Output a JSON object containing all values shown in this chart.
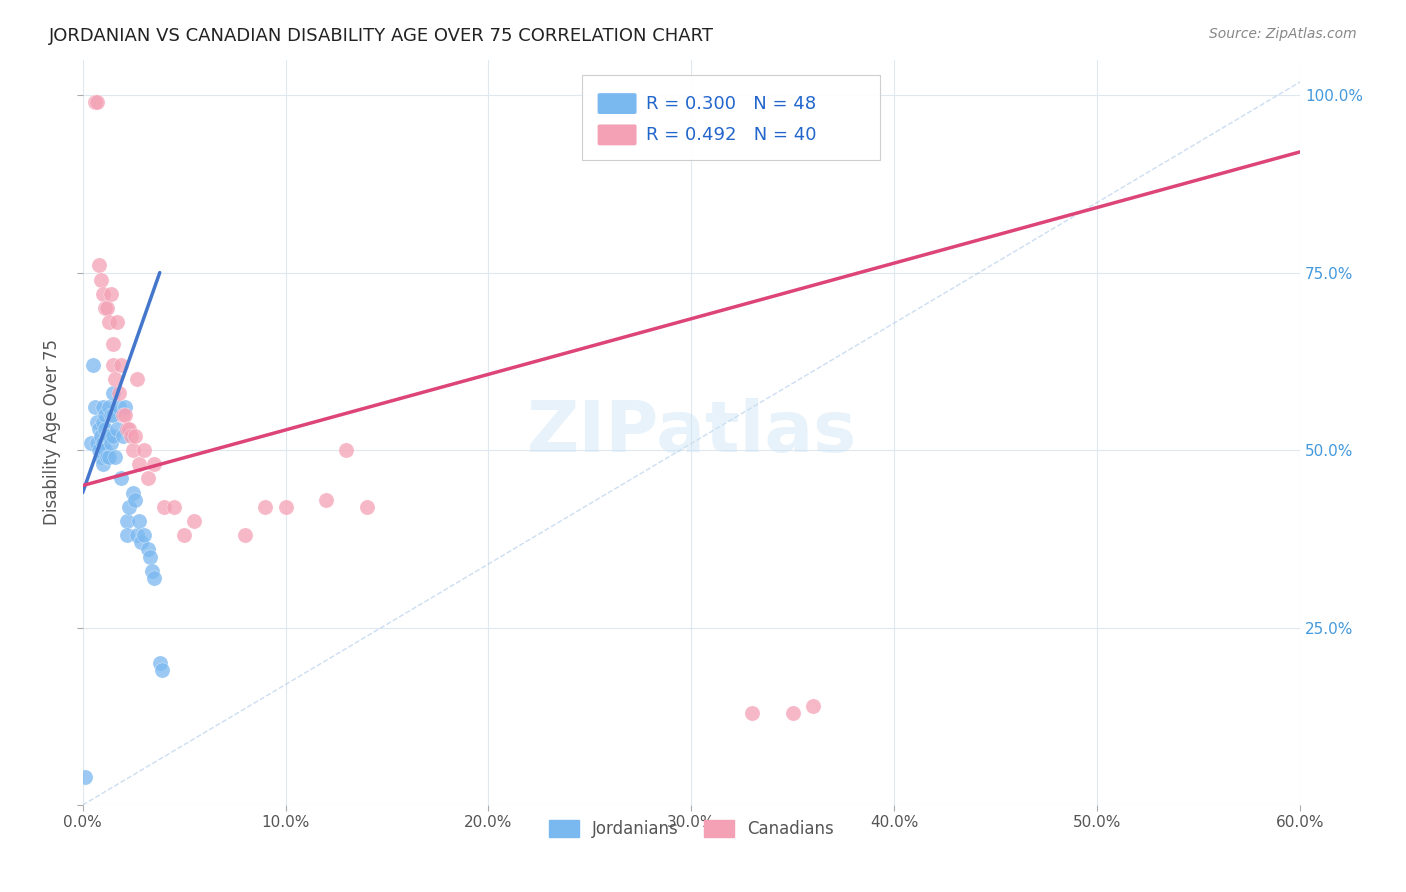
{
  "title": "JORDANIAN VS CANADIAN DISABILITY AGE OVER 75 CORRELATION CHART",
  "source": "Source: ZipAtlas.com",
  "ylabel": "Disability Age Over 75",
  "x_min": 0.0,
  "x_max": 0.6,
  "y_min": 0.0,
  "y_max": 1.05,
  "legend_blue_r": "0.300",
  "legend_blue_n": "48",
  "legend_pink_r": "0.492",
  "legend_pink_n": "40",
  "color_blue": "#7ab8f0",
  "color_pink": "#f4a0b5",
  "color_blue_line": "#4477cc",
  "color_pink_line": "#dd4477",
  "color_diag": "#aac8e8",
  "background_color": "#ffffff",
  "grid_color": "#dde8f0",
  "title_color": "#222222",
  "source_color": "#888888",
  "legend_r_color": "#2266cc",
  "jordanians_x": [
    0.001,
    0.004,
    0.005,
    0.006,
    0.007,
    0.007,
    0.008,
    0.008,
    0.009,
    0.009,
    0.01,
    0.01,
    0.01,
    0.01,
    0.011,
    0.011,
    0.011,
    0.012,
    0.012,
    0.013,
    0.013,
    0.013,
    0.014,
    0.014,
    0.015,
    0.015,
    0.015,
    0.016,
    0.017,
    0.018,
    0.019,
    0.02,
    0.021,
    0.022,
    0.022,
    0.023,
    0.025,
    0.026,
    0.027,
    0.028,
    0.029,
    0.03,
    0.032,
    0.033,
    0.034,
    0.035,
    0.038,
    0.039
  ],
  "jordanians_y": [
    0.04,
    0.51,
    0.62,
    0.56,
    0.54,
    0.51,
    0.53,
    0.5,
    0.52,
    0.49,
    0.56,
    0.54,
    0.51,
    0.48,
    0.55,
    0.53,
    0.5,
    0.52,
    0.49,
    0.56,
    0.52,
    0.49,
    0.55,
    0.51,
    0.58,
    0.55,
    0.52,
    0.49,
    0.53,
    0.56,
    0.46,
    0.52,
    0.56,
    0.4,
    0.38,
    0.42,
    0.44,
    0.43,
    0.38,
    0.4,
    0.37,
    0.38,
    0.36,
    0.35,
    0.33,
    0.32,
    0.2,
    0.19
  ],
  "canadians_x": [
    0.006,
    0.007,
    0.008,
    0.009,
    0.01,
    0.011,
    0.012,
    0.013,
    0.014,
    0.015,
    0.015,
    0.016,
    0.017,
    0.018,
    0.019,
    0.02,
    0.021,
    0.022,
    0.023,
    0.024,
    0.025,
    0.026,
    0.027,
    0.028,
    0.03,
    0.032,
    0.035,
    0.04,
    0.045,
    0.05,
    0.055,
    0.08,
    0.09,
    0.1,
    0.12,
    0.13,
    0.14,
    0.33,
    0.35,
    0.36
  ],
  "canadians_y": [
    0.99,
    0.99,
    0.76,
    0.74,
    0.72,
    0.7,
    0.7,
    0.68,
    0.72,
    0.65,
    0.62,
    0.6,
    0.68,
    0.58,
    0.62,
    0.55,
    0.55,
    0.53,
    0.53,
    0.52,
    0.5,
    0.52,
    0.6,
    0.48,
    0.5,
    0.46,
    0.48,
    0.42,
    0.42,
    0.38,
    0.4,
    0.38,
    0.42,
    0.42,
    0.43,
    0.5,
    0.42,
    0.13,
    0.13,
    0.14
  ],
  "blue_line_x0": 0.0,
  "blue_line_y0": 0.44,
  "blue_line_x1": 0.038,
  "blue_line_y1": 0.75,
  "pink_line_x0": 0.0,
  "pink_line_y0": 0.45,
  "pink_line_x1": 0.6,
  "pink_line_y1": 0.92
}
